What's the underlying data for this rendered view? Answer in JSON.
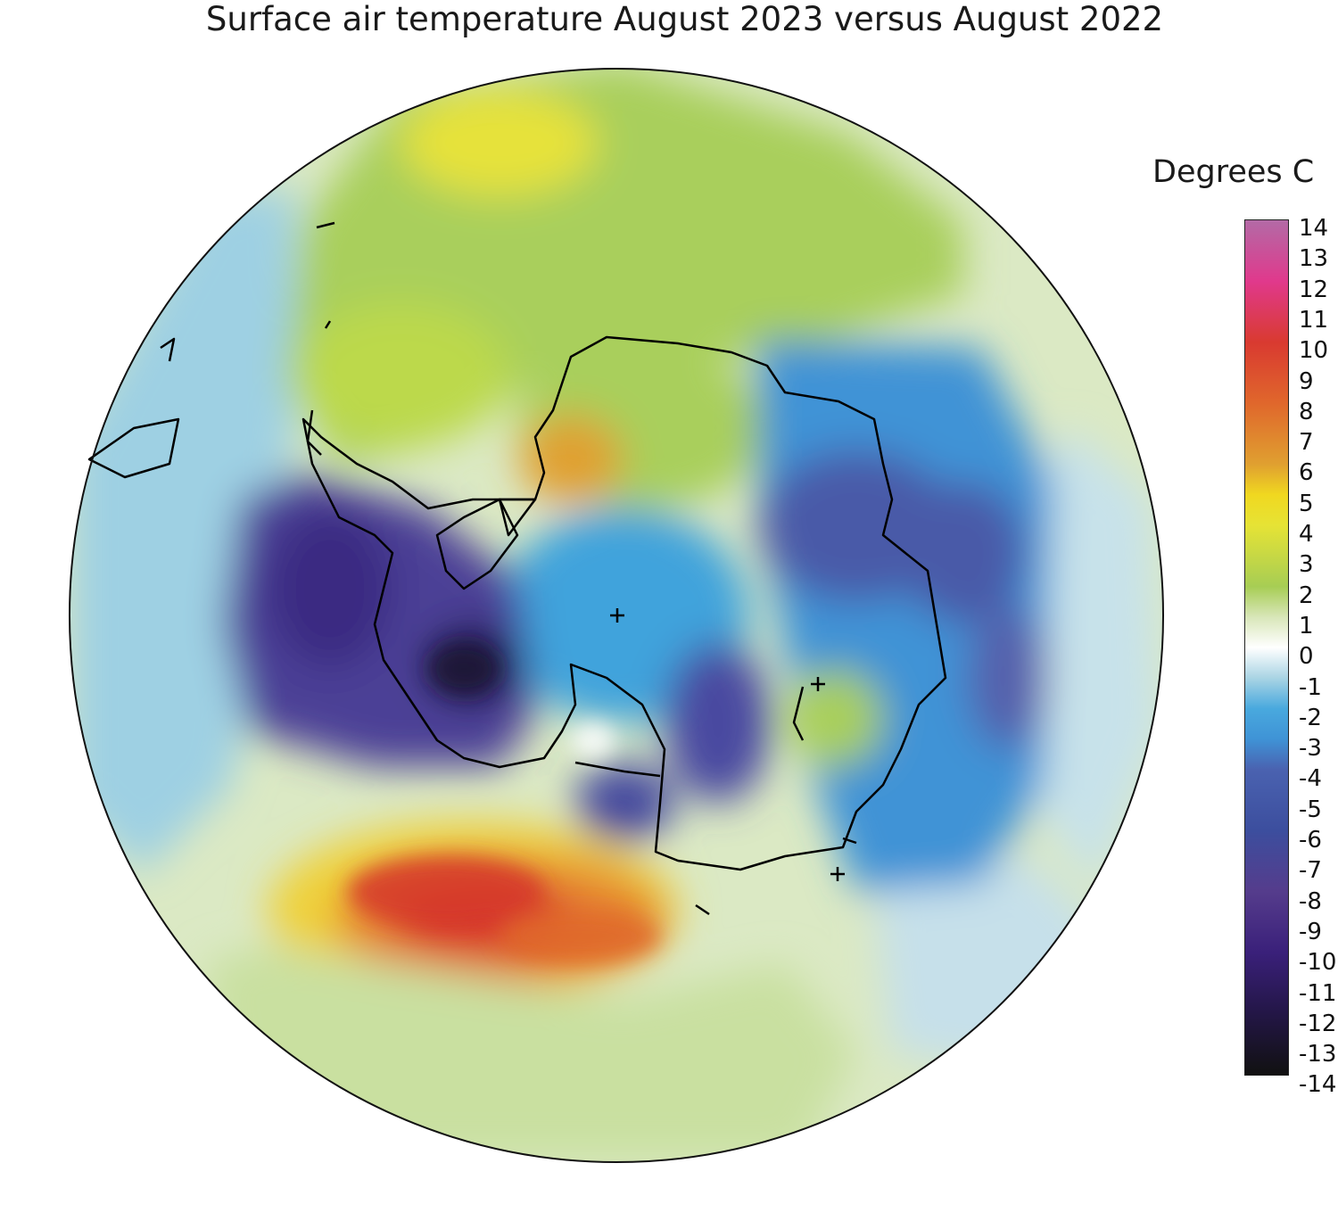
{
  "title": "Surface air temperature August 2023 versus August 2022",
  "legend": {
    "title": "Degrees C",
    "ticks": [
      "14",
      "13",
      "12",
      "11",
      "10",
      "9",
      "8",
      "7",
      "6",
      "5",
      "4",
      "3",
      "2",
      "1",
      "0",
      "-1",
      "-2",
      "-3",
      "-4",
      "-5",
      "-6",
      "-7",
      "-8",
      "-9",
      "-10",
      "-11",
      "-12",
      "-13",
      "-14"
    ],
    "range": [
      -14,
      14
    ],
    "colors": {
      "14": "#b36aa6",
      "12": "#e0398c",
      "10": "#d93a30",
      "8": "#e0672c",
      "6": "#e0a030",
      "5": "#f0d820",
      "4": "#e6e335",
      "2": "#a7cd54",
      "1": "#d8e6b8",
      "0": "#ffffff",
      "-1": "#a9d4e4",
      "-2": "#49a9de",
      "-3": "#3f93d6",
      "-4": "#4a62b0",
      "-6": "#3c4e9e",
      "-8": "#553c8c",
      "-10": "#3a207a",
      "-12": "#231646",
      "-14": "#111111"
    }
  },
  "map": {
    "projection": "south-polar-stereographic",
    "markers": [
      "+",
      "+",
      "+"
    ]
  }
}
